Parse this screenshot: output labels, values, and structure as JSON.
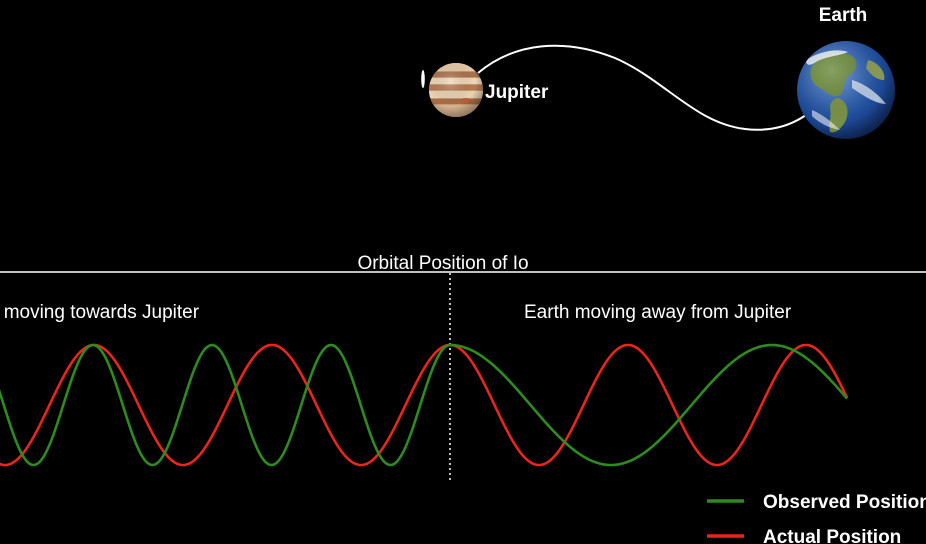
{
  "labels": {
    "earth": "Earth",
    "jupiter": "Jupiter",
    "io": "Io",
    "axis_title": "Orbital Position of Io",
    "left_section": "Earth moving towards Jupiter",
    "right_section": "Earth moving away from Jupiter"
  },
  "legend": [
    {
      "label": "Observed Position",
      "color": "#2e8b1f"
    },
    {
      "label": "Actual Position",
      "color": "#e8261c"
    }
  ],
  "colors": {
    "background": "#000000",
    "observed": "#2e8b1f",
    "actual": "#e8261c",
    "line": "#ffffff"
  },
  "icons": {
    "earth": "earth-globe-icon",
    "jupiter": "jupiter-planet-icon",
    "io": "io-moon-icon"
  }
}
